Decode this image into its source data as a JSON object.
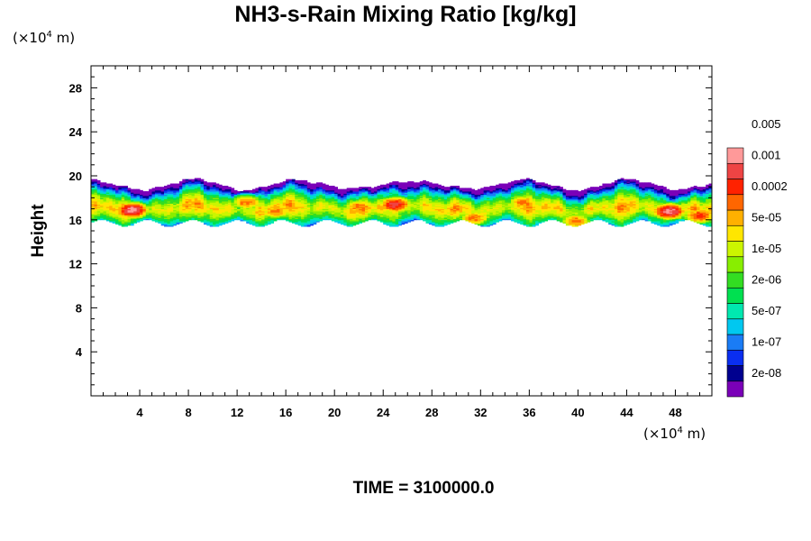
{
  "chart_data": {
    "type": "heatmap",
    "title": "NH3-s-Rain Mixing Ratio [kg/kg]",
    "ylabel": "Height",
    "x_unit": {
      "prefix": "(×10",
      "exp": "4",
      "suffix": " m)"
    },
    "y_unit": {
      "prefix": "(×10",
      "exp": "4",
      "suffix": " m)"
    },
    "xlim": [
      0,
      51
    ],
    "ylim": [
      0,
      30
    ],
    "x_ticks": [
      "4",
      "8",
      "12",
      "16",
      "20",
      "24",
      "28",
      "32",
      "36",
      "40",
      "44",
      "48"
    ],
    "y_ticks": [
      "4",
      "8",
      "12",
      "16",
      "20",
      "24",
      "28"
    ],
    "colorbar": {
      "levels": [
        "2e-08",
        "1e-07",
        "5e-07",
        "2e-06",
        "1e-05",
        "5e-05",
        "0.0002",
        "0.001",
        "0.005"
      ],
      "colors": [
        "#7a00b8",
        "#00008f",
        "#0a2ef0",
        "#1a7cf5",
        "#00c8f0",
        "#00e8b0",
        "#00e050",
        "#33dd22",
        "#88ee00",
        "#ccf500",
        "#ffe600",
        "#ffb000",
        "#ff6600",
        "#ff2200",
        "#ee4444",
        "#ff9999"
      ]
    },
    "field": {
      "base_height": 16.2,
      "top_height": 19.0,
      "description_values": [
        {
          "x": 3.4,
          "y": 16.9,
          "level": 15
        },
        {
          "x": 12.8,
          "y": 17.6,
          "level": 12
        },
        {
          "x": 15.2,
          "y": 16.8,
          "level": 12
        },
        {
          "x": 22.0,
          "y": 17.2,
          "level": 12
        },
        {
          "x": 25.0,
          "y": 17.4,
          "level": 14
        },
        {
          "x": 31.5,
          "y": 16.2,
          "level": 12
        },
        {
          "x": 35.5,
          "y": 17.6,
          "level": 12
        },
        {
          "x": 39.8,
          "y": 15.9,
          "level": 12
        },
        {
          "x": 47.5,
          "y": 16.8,
          "level": 15
        },
        {
          "x": 50.0,
          "y": 16.4,
          "level": 13
        }
      ]
    },
    "time_label": "TIME = 3100000.0"
  }
}
